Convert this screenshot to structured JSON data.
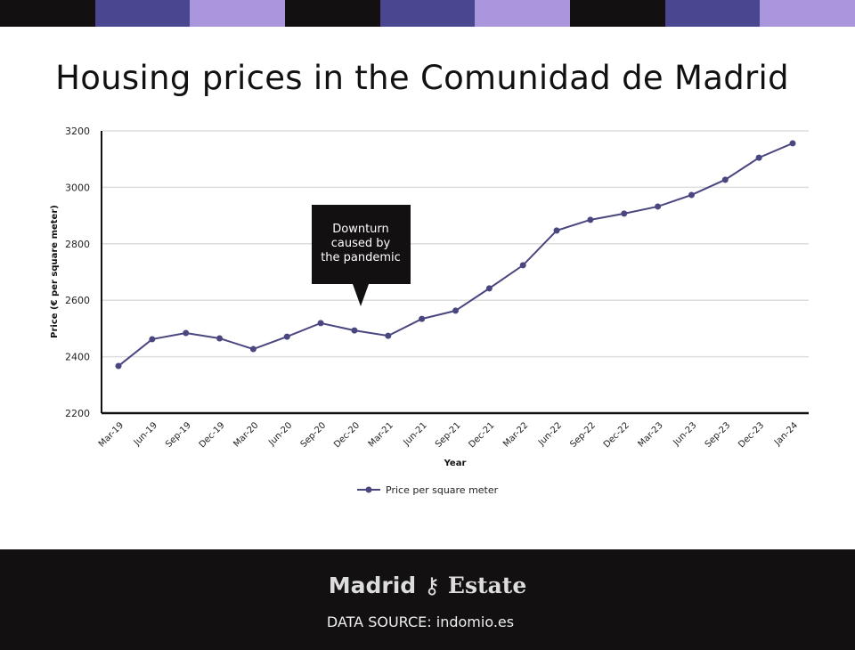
{
  "top_bar_colors": [
    "#121010",
    "#4a4690",
    "#a996dc",
    "#121010",
    "#4a4690",
    "#a996dc",
    "#121010",
    "#4a4690",
    "#a996dc"
  ],
  "title": "Housing prices in the Comunidad de Madrid",
  "chart_data": {
    "type": "line",
    "title": "Housing prices in the Comunidad de Madrid",
    "xlabel": "Year",
    "ylabel": "Price (€ per square meter)",
    "ylim": [
      2200,
      3200
    ],
    "yticks": [
      2200,
      2400,
      2600,
      2800,
      3000,
      3200
    ],
    "grid": true,
    "legend": "bottom",
    "categories": [
      "Mar-19",
      "Jun-19",
      "Sep-19",
      "Dec-19",
      "Mar-20",
      "Jun-20",
      "Sep-20",
      "Dec-20",
      "Mar-21",
      "Jun-21",
      "Sep-21",
      "Dec-21",
      "Mar-22",
      "Jun-22",
      "Sep-22",
      "Dec-22",
      "Mar-23",
      "Jun-23",
      "Sep-23",
      "Dec-23",
      "Jan-24"
    ],
    "series": [
      {
        "name": "Price per square meter",
        "color": "#4a4680",
        "values": [
          2367,
          2462,
          2484,
          2465,
          2427,
          2471,
          2519,
          2493,
          2474,
          2534,
          2563,
          2642,
          2724,
          2847,
          2885,
          2907,
          2932,
          2973,
          3027,
          3105,
          3156
        ]
      }
    ],
    "annotation": {
      "lines": [
        "Downturn",
        "caused by",
        "the pandemic"
      ],
      "points_to": "Dec-20"
    }
  },
  "footer": {
    "logo_left": "Madrid",
    "logo_right": "Estate",
    "source": "DATA SOURCE: indomio.es"
  }
}
